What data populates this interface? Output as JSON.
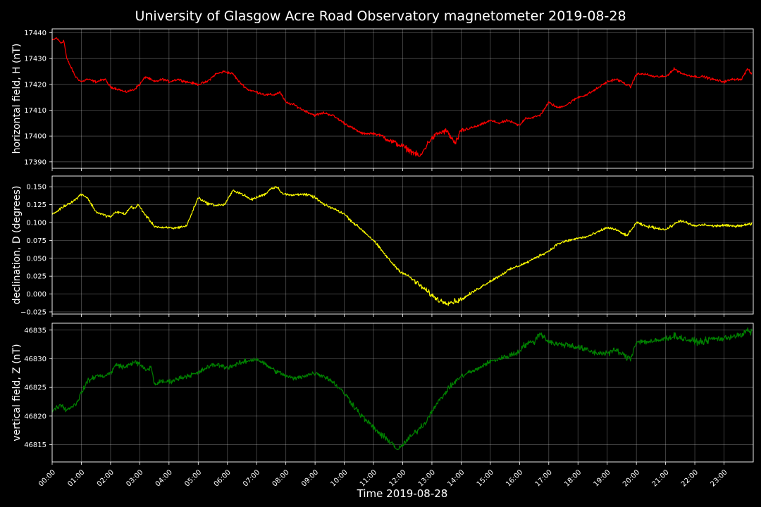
{
  "chart_data": {
    "type": "line",
    "title": "University of Glasgow Acre Road Observatory magnetometer 2019-08-28",
    "xlabel": "Time 2019-08-28",
    "background": "#000000",
    "grid": true,
    "x_unit": "hours",
    "xlim": [
      0,
      24
    ],
    "xticks": [
      "00:00",
      "01:00",
      "02:00",
      "03:00",
      "04:00",
      "05:00",
      "06:00",
      "07:00",
      "08:00",
      "09:00",
      "10:00",
      "11:00",
      "12:00",
      "13:00",
      "14:00",
      "15:00",
      "16:00",
      "17:00",
      "18:00",
      "19:00",
      "20:00",
      "21:00",
      "22:00",
      "23:00"
    ],
    "panels": [
      {
        "ylabel": "horizontal field, H (nT)",
        "color": "#ff0000",
        "ylim": [
          17387.5,
          17441.5
        ],
        "yticks": [
          "17390",
          "17400",
          "17410",
          "17420",
          "17430",
          "17440"
        ],
        "ytick_values": [
          17390,
          17400,
          17410,
          17420,
          17430,
          17440
        ],
        "noise": [
          0.4,
          0.9
        ],
        "x": [
          0,
          0.15,
          0.3,
          0.4,
          0.5,
          0.8,
          1.0,
          1.2,
          1.5,
          1.8,
          2.0,
          2.3,
          2.5,
          2.8,
          3.0,
          3.2,
          3.5,
          3.8,
          4.0,
          4.3,
          4.6,
          5.0,
          5.3,
          5.6,
          5.9,
          6.2,
          6.4,
          6.7,
          7.0,
          7.3,
          7.6,
          7.8,
          8.0,
          8.3,
          8.6,
          9.0,
          9.3,
          9.6,
          10.0,
          10.3,
          10.6,
          11.0,
          11.3,
          11.6,
          12.0,
          12.3,
          12.6,
          12.9,
          13.2,
          13.5,
          13.8,
          14.0,
          14.3,
          14.6,
          15.0,
          15.3,
          15.6,
          16.0,
          16.2,
          16.4,
          16.7,
          17.0,
          17.3,
          17.6,
          18.0,
          18.3,
          18.6,
          19.0,
          19.3,
          19.5,
          19.8,
          20.0,
          20.3,
          20.6,
          21.0,
          21.3,
          21.6,
          22.0,
          22.3,
          22.6,
          23.0,
          23.3,
          23.6,
          23.8,
          23.95
        ],
        "y": [
          17437,
          17438,
          17436,
          17437,
          17430,
          17423,
          17421,
          17422,
          17421,
          17422,
          17419,
          17418,
          17417,
          17418,
          17420,
          17423,
          17421,
          17422,
          17421,
          17422,
          17421,
          17420,
          17421,
          17424,
          17425,
          17424,
          17421,
          17418,
          17417,
          17416,
          17416,
          17417,
          17413,
          17412,
          17410,
          17408,
          17409,
          17408,
          17405,
          17403,
          17401,
          17401,
          17400,
          17398,
          17396,
          17394,
          17392,
          17398,
          17401,
          17402,
          17397,
          17402,
          17403,
          17404,
          17406,
          17405,
          17406,
          17404,
          17407,
          17407,
          17408,
          17413,
          17411,
          17412,
          17415,
          17416,
          17418,
          17421,
          17422,
          17421,
          17419,
          17424,
          17424,
          17423,
          17423,
          17426,
          17424,
          17423,
          17423,
          17422,
          17421,
          17422,
          17422,
          17426,
          17424
        ]
      },
      {
        "ylabel": "declination, D (degrees)",
        "color": "#ffff00",
        "ylim": [
          -0.028,
          0.165
        ],
        "yticks": [
          "−0.025",
          "0.000",
          "0.025",
          "0.050",
          "0.075",
          "0.100",
          "0.125",
          "0.150"
        ],
        "ytick_values": [
          -0.025,
          0,
          0.025,
          0.05,
          0.075,
          0.1,
          0.125,
          0.15
        ],
        "noise": [
          0.0015,
          0.003
        ],
        "x": [
          0,
          0.15,
          0.3,
          0.5,
          0.8,
          1.0,
          1.2,
          1.5,
          1.8,
          2.0,
          2.2,
          2.5,
          2.7,
          2.85,
          2.95,
          3.2,
          3.5,
          3.8,
          4.0,
          4.2,
          4.4,
          4.6,
          5.0,
          5.3,
          5.6,
          5.9,
          6.2,
          6.5,
          6.8,
          7.0,
          7.3,
          7.5,
          7.7,
          7.9,
          8.2,
          8.5,
          8.8,
          9.0,
          9.3,
          9.6,
          10.0,
          10.3,
          10.6,
          11.0,
          11.3,
          11.6,
          11.9,
          12.2,
          12.5,
          12.8,
          13.0,
          13.3,
          13.6,
          14.0,
          14.3,
          14.6,
          15.0,
          15.3,
          15.6,
          16.0,
          16.3,
          16.6,
          17.0,
          17.3,
          17.6,
          18.0,
          18.3,
          18.6,
          19.0,
          19.3,
          19.5,
          19.7,
          20.0,
          20.3,
          20.6,
          21.0,
          21.2,
          21.5,
          21.8,
          22.0,
          22.3,
          22.6,
          23.0,
          23.3,
          23.6,
          23.95
        ],
        "y": [
          0.112,
          0.115,
          0.12,
          0.125,
          0.132,
          0.14,
          0.135,
          0.115,
          0.11,
          0.108,
          0.115,
          0.112,
          0.122,
          0.12,
          0.125,
          0.11,
          0.095,
          0.092,
          0.093,
          0.092,
          0.094,
          0.095,
          0.135,
          0.127,
          0.124,
          0.125,
          0.145,
          0.14,
          0.132,
          0.135,
          0.14,
          0.148,
          0.15,
          0.14,
          0.138,
          0.14,
          0.138,
          0.135,
          0.125,
          0.12,
          0.112,
          0.1,
          0.09,
          0.075,
          0.06,
          0.045,
          0.032,
          0.025,
          0.015,
          0.005,
          -0.002,
          -0.01,
          -0.012,
          -0.008,
          0,
          0.008,
          0.018,
          0.025,
          0.033,
          0.04,
          0.045,
          0.052,
          0.06,
          0.07,
          0.074,
          0.078,
          0.08,
          0.085,
          0.093,
          0.09,
          0.085,
          0.082,
          0.1,
          0.095,
          0.093,
          0.09,
          0.095,
          0.103,
          0.098,
          0.095,
          0.097,
          0.095,
          0.096,
          0.095,
          0.096,
          0.098
        ]
      },
      {
        "ylabel": "vertical field, Z (nT)",
        "color": "#008000",
        "ylim": [
          46812.0,
          46836.2
        ],
        "yticks": [
          "46815",
          "46820",
          "46825",
          "46830",
          "46835"
        ],
        "ytick_values": [
          46815,
          46820,
          46825,
          46830,
          46835
        ],
        "noise": [
          0.35,
          0.45
        ],
        "x": [
          0,
          0.15,
          0.3,
          0.5,
          0.6,
          0.8,
          1.0,
          1.2,
          1.5,
          1.8,
          2.0,
          2.2,
          2.5,
          2.8,
          3.0,
          3.2,
          3.4,
          3.5,
          3.7,
          4.0,
          4.3,
          4.6,
          5.0,
          5.3,
          5.6,
          6.0,
          6.3,
          6.6,
          7.0,
          7.3,
          7.6,
          8.0,
          8.3,
          8.6,
          9.0,
          9.3,
          9.6,
          10.0,
          10.3,
          10.6,
          11.0,
          11.3,
          11.6,
          11.85,
          12.0,
          12.2,
          12.4,
          12.6,
          12.8,
          13.0,
          13.3,
          13.6,
          13.9,
          14.2,
          14.5,
          14.8,
          15.0,
          15.3,
          15.6,
          15.9,
          16.2,
          16.5,
          16.7,
          17.0,
          17.3,
          17.6,
          18.0,
          18.3,
          18.6,
          19.0,
          19.3,
          19.6,
          19.8,
          20.0,
          20.3,
          20.6,
          21.0,
          21.3,
          21.6,
          22.0,
          22.3,
          22.6,
          23.0,
          23.3,
          23.6,
          23.8,
          23.95
        ],
        "y": [
          46821,
          46821.5,
          46822,
          46821,
          46821.5,
          46822,
          46824,
          46826,
          46827,
          46827,
          46827.5,
          46829,
          46828.5,
          46829.5,
          46829,
          46828,
          46828.5,
          46825.5,
          46826,
          46826,
          46826.5,
          46827,
          46827.5,
          46828.5,
          46829,
          46828.5,
          46829,
          46829.5,
          46830,
          46829,
          46828,
          46827,
          46826.5,
          46827,
          46827.5,
          46827,
          46826,
          46824,
          46822,
          46820,
          46818,
          46816.5,
          46815.5,
          46814,
          46815,
          46816,
          46817,
          46818,
          46819,
          46821,
          46823,
          46825,
          46826.5,
          46827.5,
          46828,
          46829,
          46829.5,
          46830,
          46830.5,
          46831,
          46832.5,
          46833,
          46834.5,
          46833,
          46832.5,
          46832.5,
          46832,
          46831.5,
          46831,
          46831,
          46831.5,
          46830.5,
          46830,
          46833,
          46833,
          46833,
          46833.5,
          46834,
          46833.5,
          46833,
          46833,
          46833.5,
          46833.5,
          46834,
          46834,
          46835,
          46834.5
        ]
      }
    ]
  }
}
